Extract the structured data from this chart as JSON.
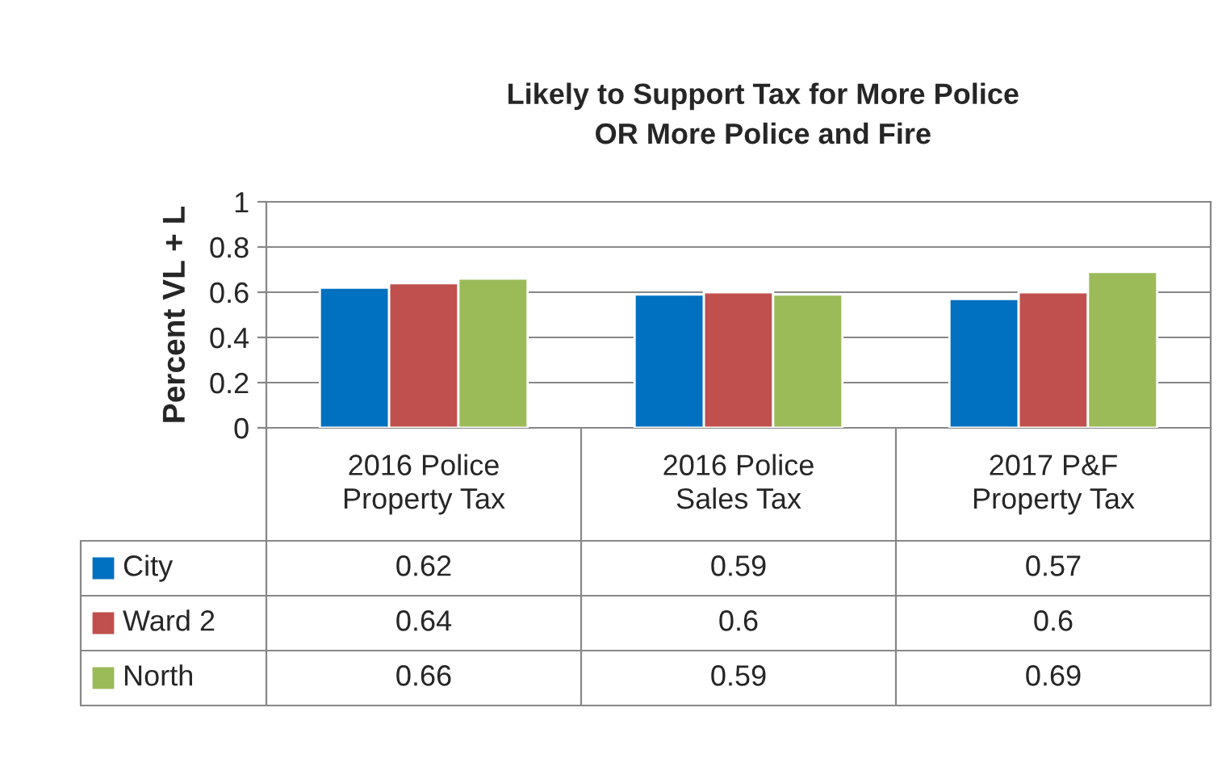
{
  "chart_data": {
    "type": "bar",
    "title": "Likely to Support Tax for More Police\nOR More Police and Fire",
    "ylabel": "Percent VL + L",
    "categories": [
      "2016 Police\nProperty Tax",
      "2016 Police\nSales Tax",
      "2017 P&F\nProperty Tax"
    ],
    "series": [
      {
        "name": "City",
        "color": "#0070c0",
        "values": [
          0.62,
          0.59,
          0.57
        ]
      },
      {
        "name": "Ward 2",
        "color": "#c0504d",
        "values": [
          0.64,
          0.6,
          0.6
        ]
      },
      {
        "name": "North",
        "color": "#9bbb59",
        "values": [
          0.66,
          0.59,
          0.69
        ]
      }
    ],
    "ylim": [
      0,
      1
    ],
    "yticks": [
      0,
      0.2,
      0.4,
      0.6,
      0.8,
      1
    ],
    "grid": "y",
    "data_labels": true,
    "legend": "bottom"
  }
}
